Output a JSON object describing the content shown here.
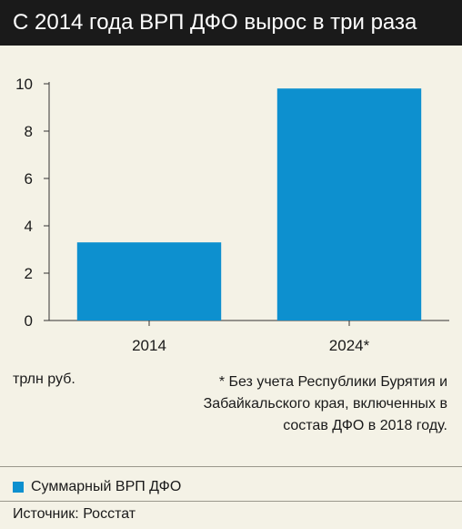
{
  "title": "С 2014 года ВРП ДФО вырос в три раза",
  "unit_label": "трлн руб.",
  "footnote": "* Без учета Республики Бурятия и Забайкальского края, включенных в состав ДФО в 2018 году.",
  "legend_label": "Суммарный ВРП ДФО",
  "source": "Источник: Росстат",
  "colors": {
    "bar": "#0d90cf",
    "background": "#f4f2e6",
    "title_bar": "#1a1a1a"
  },
  "chart_data": {
    "type": "bar",
    "categories": [
      "2014",
      "2024*"
    ],
    "series": [
      {
        "name": "Суммарный ВРП ДФО",
        "values": [
          3.3,
          9.8
        ]
      }
    ],
    "yticks": [
      "0",
      "2",
      "4",
      "6",
      "8",
      "10"
    ],
    "ylim": [
      0,
      10
    ],
    "grid": false,
    "legend": "bottom-left"
  }
}
